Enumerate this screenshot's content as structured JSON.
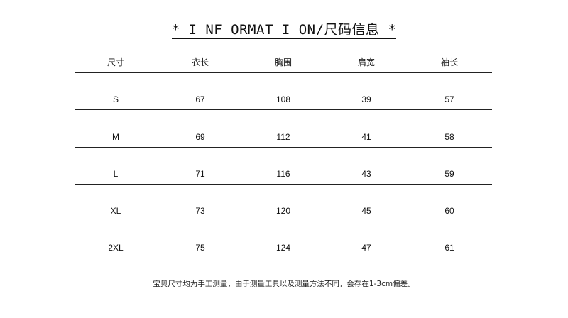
{
  "title": "* I NF ORMAT I ON/尺码信息 *",
  "table": {
    "headers": [
      "尺寸",
      "衣长",
      "胸围",
      "肩宽",
      "袖长"
    ],
    "rows": [
      [
        "S",
        "67",
        "108",
        "39",
        "57"
      ],
      [
        "M",
        "69",
        "112",
        "41",
        "58"
      ],
      [
        "L",
        "71",
        "116",
        "43",
        "59"
      ],
      [
        "XL",
        "73",
        "120",
        "45",
        "60"
      ],
      [
        "2XL",
        "75",
        "124",
        "47",
        "61"
      ]
    ]
  },
  "note": "宝贝尺寸均为手工测量，由于测量工具以及测量方法不同，会存在1-3cm偏差。"
}
